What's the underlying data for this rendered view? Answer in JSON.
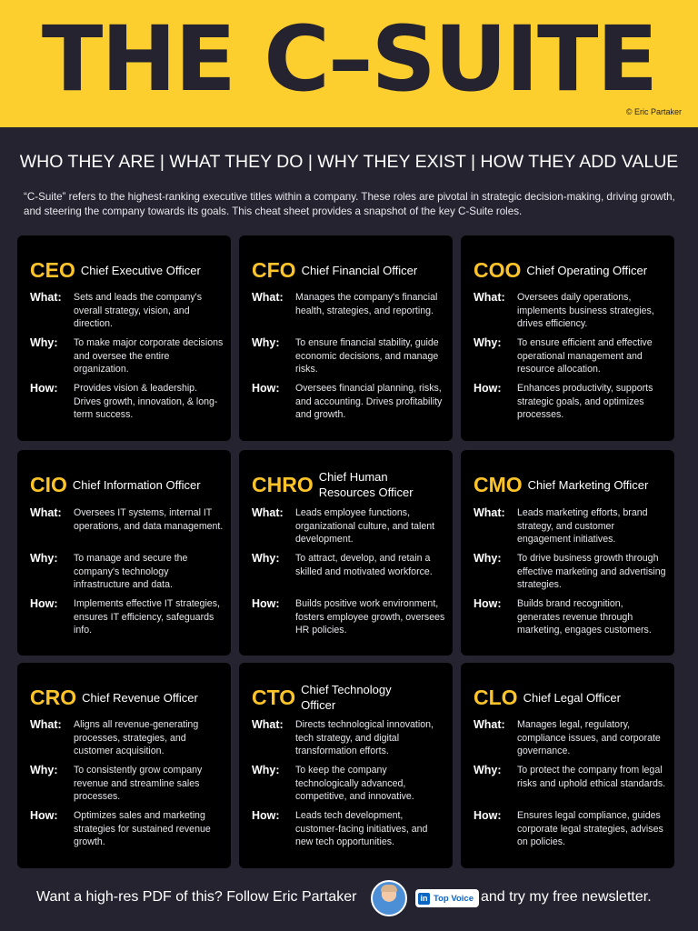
{
  "header": {
    "title": "THE C–SUITE",
    "copyright": "© Eric Partaker"
  },
  "subheading": "WHO THEY ARE | WHAT THEY DO | WHY THEY EXIST | HOW THEY ADD VALUE",
  "intro": "“C-Suite” refers to the highest-ranking executive titles within a company. These roles are pivotal in strategic decision-making, driving growth, and steering the company towards its goals. This cheat sheet provides a snapshot of the key C-Suite roles.",
  "labels": {
    "what": "What:",
    "why": "Why:",
    "how": "How:"
  },
  "colors": {
    "accent": "#fdc42a",
    "banner": "#fdcf2e",
    "background": "#25232f",
    "card": "#000000"
  },
  "roles": [
    {
      "abbr": "CEO",
      "name": "Chief Executive Officer",
      "what": "Sets and leads the company's overall strategy, vision, and direction.",
      "why": "To make major corporate decisions and oversee the entire organization.",
      "how": "Provides vision & leadership. Drives growth, innovation, & long-term success."
    },
    {
      "abbr": "CFO",
      "name": "Chief Financial Officer",
      "what": "Manages the company's financial health, strategies, and reporting.",
      "why": "To ensure financial stability, guide economic decisions, and manage risks.",
      "how": "Oversees financial planning, risks, and accounting. Drives profitability and growth."
    },
    {
      "abbr": "COO",
      "name": "Chief Operating Officer",
      "what": "Oversees daily operations, implements business strategies, drives efficiency.",
      "why": "To ensure efficient and effective operational management and resource allocation.",
      "how": "Enhances productivity, supports strategic goals, and optimizes processes."
    },
    {
      "abbr": "CIO",
      "name": "Chief Information Officer",
      "what": "Oversees IT systems, internal IT operations, and data management.",
      "why": "To manage and secure the company's technology infrastructure and data.",
      "how": "Implements effective IT strategies, ensures IT efficiency, safeguards info."
    },
    {
      "abbr": "CHRO",
      "name": "Chief Human Resources Officer",
      "what": "Leads employee functions, organizational culture, and talent development.",
      "why": "To attract, develop, and retain a skilled and motivated workforce.",
      "how": "Builds positive work environment, fosters employee growth, oversees HR policies."
    },
    {
      "abbr": "CMO",
      "name": "Chief Marketing Officer",
      "what": "Leads marketing efforts, brand strategy, and customer engagement initiatives.",
      "why": "To drive business growth through effective marketing and advertising strategies.",
      "how": "Builds brand recognition, generates revenue through marketing, engages customers."
    },
    {
      "abbr": "CRO",
      "name": "Chief Revenue Officer",
      "what": "Aligns all revenue-generating processes, strategies, and customer acquisition.",
      "why": "To consistently grow company revenue and streamline sales processes.",
      "how": "Optimizes sales and marketing strategies for sustained revenue growth."
    },
    {
      "abbr": "CTO",
      "name": "Chief Technology Officer",
      "what": "Directs technological innovation, tech strategy, and digital transformation efforts.",
      "why": "To keep the company technologically advanced, competitive, and innovative.",
      "how": "Leads tech development, customer-facing initiatives, and new tech opportunities."
    },
    {
      "abbr": "CLO",
      "name": "Chief Legal Officer",
      "what": "Manages legal, regulatory, compliance issues, and corporate governance.",
      "why": "To protect the company from legal risks and uphold ethical standards.",
      "how": "Ensures legal compliance, guides corporate legal strategies, advises on policies."
    }
  ],
  "footer": {
    "cta_left": "Want a high-res PDF of this? Follow Eric Partaker",
    "badge_icon": "in",
    "badge": "Top Voice",
    "cta_right": "and try my free newsletter."
  }
}
